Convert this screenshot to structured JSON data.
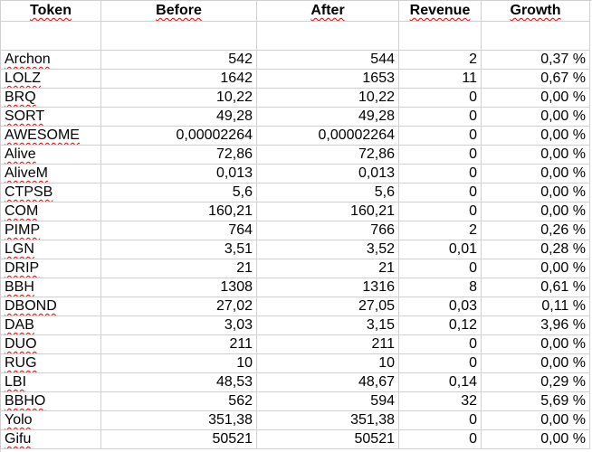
{
  "headers": [
    "Token",
    "Before",
    "After",
    "Revenue",
    "Growth"
  ],
  "rows": [
    [
      "Archon",
      "542",
      "544",
      "2",
      "0,37 %"
    ],
    [
      "LOLZ",
      "1642",
      "1653",
      "11",
      "0,67 %"
    ],
    [
      "BRQ",
      "10,22",
      "10,22",
      "0",
      "0,00 %"
    ],
    [
      "SORT",
      "49,28",
      "49,28",
      "0",
      "0,00 %"
    ],
    [
      "AWESOME",
      "0,00002264",
      "0,00002264",
      "0",
      "0,00 %"
    ],
    [
      "Alive",
      "72,86",
      "72,86",
      "0",
      "0,00 %"
    ],
    [
      "AliveM",
      "0,013",
      "0,013",
      "0",
      "0,00 %"
    ],
    [
      "CTPSB",
      "5,6",
      "5,6",
      "0",
      "0,00 %"
    ],
    [
      "COM",
      "160,21",
      "160,21",
      "0",
      "0,00 %"
    ],
    [
      "PIMP",
      "764",
      "766",
      "2",
      "0,26 %"
    ],
    [
      "LGN",
      "3,51",
      "3,52",
      "0,01",
      "0,28 %"
    ],
    [
      "DRIP",
      "21",
      "21",
      "0",
      "0,00 %"
    ],
    [
      "BBH",
      "1308",
      "1316",
      "8",
      "0,61 %"
    ],
    [
      "DBOND",
      "27,02",
      "27,05",
      "0,03",
      "0,11 %"
    ],
    [
      "DAB",
      "3,03",
      "3,15",
      "0,12",
      "3,96 %"
    ],
    [
      "DUO",
      "211",
      "211",
      "0",
      "0,00 %"
    ],
    [
      "RUG",
      "10",
      "10",
      "0",
      "0,00 %"
    ],
    [
      "LBI",
      "48,53",
      "48,67",
      "0,14",
      "0,29 %"
    ],
    [
      "BBHO",
      "562",
      "594",
      "32",
      "5,69 %"
    ],
    [
      "Yolo",
      "351,38",
      "351,38",
      "0",
      "0,00 %"
    ],
    [
      "Gifu",
      "50521",
      "50521",
      "0",
      "0,00 %"
    ]
  ],
  "colors": {
    "gridline": "#d0d0d0",
    "spellcheck": "#e00000"
  }
}
